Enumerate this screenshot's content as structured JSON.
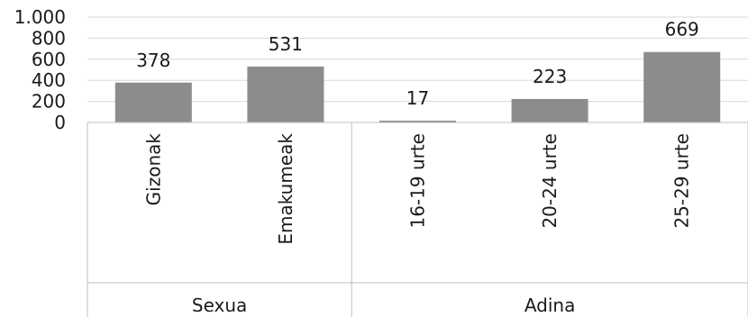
{
  "chart_data": {
    "type": "bar",
    "categories": [
      "Gizonak",
      "Emakumeak",
      "16-19 urte",
      "20-24 urte",
      "25-29 urte"
    ],
    "values": [
      378,
      531,
      17,
      223,
      669
    ],
    "data_labels": [
      "378",
      "531",
      "17",
      "223",
      "669"
    ],
    "groups": [
      {
        "label": "Sexua",
        "categories": [
          "Gizonak",
          "Emakumeak"
        ]
      },
      {
        "label": "Adina",
        "categories": [
          "16-19 urte",
          "20-24 urte",
          "25-29 urte"
        ]
      }
    ],
    "yticks": [
      0,
      200,
      400,
      600,
      800,
      1000
    ],
    "ytick_labels": [
      "0",
      "200",
      "400",
      "600",
      "800",
      "1.000"
    ],
    "ylim": [
      0,
      1000
    ],
    "grid": true,
    "legend": "none",
    "bar_color": "#8c8c8c",
    "grid_color": "#d9d9d9",
    "axis_color": "#bfbfbf"
  }
}
